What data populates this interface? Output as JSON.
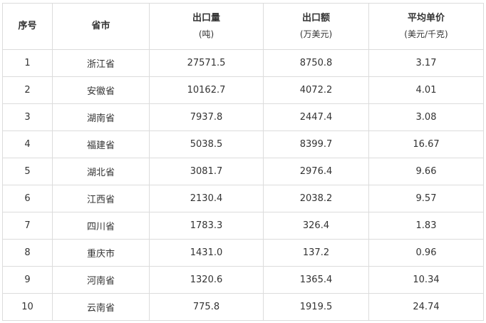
{
  "headers": [
    {
      "title": "序号",
      "unit": ""
    },
    {
      "title": "省市",
      "unit": ""
    },
    {
      "title": "出口量",
      "unit": "(吨)"
    },
    {
      "title": "出口额",
      "unit": "(万美元)"
    },
    {
      "title": "平均单价",
      "unit": "(美元/千克)"
    }
  ],
  "rows": [
    [
      "1",
      "浙江省",
      "27571.5",
      "8750.8",
      "3.17"
    ],
    [
      "2",
      "安徽省",
      "10162.7",
      "4072.2",
      "4.01"
    ],
    [
      "3",
      "湖南省",
      "7937.8",
      "2447.4",
      "3.08"
    ],
    [
      "4",
      "福建省",
      "5038.5",
      "8399.7",
      "16.67"
    ],
    [
      "5",
      "湖北省",
      "3081.7",
      "2976.4",
      "9.66"
    ],
    [
      "6",
      "江西省",
      "2130.4",
      "2038.2",
      "9.57"
    ],
    [
      "7",
      "四川省",
      "1783.3",
      "326.4",
      "1.83"
    ],
    [
      "8",
      "重庆市",
      "1431.0",
      "137.2",
      "0.96"
    ],
    [
      "9",
      "河南省",
      "1320.6",
      "1365.4",
      "10.34"
    ],
    [
      "10",
      "云南省",
      "775.8",
      "1919.5",
      "24.74"
    ]
  ]
}
